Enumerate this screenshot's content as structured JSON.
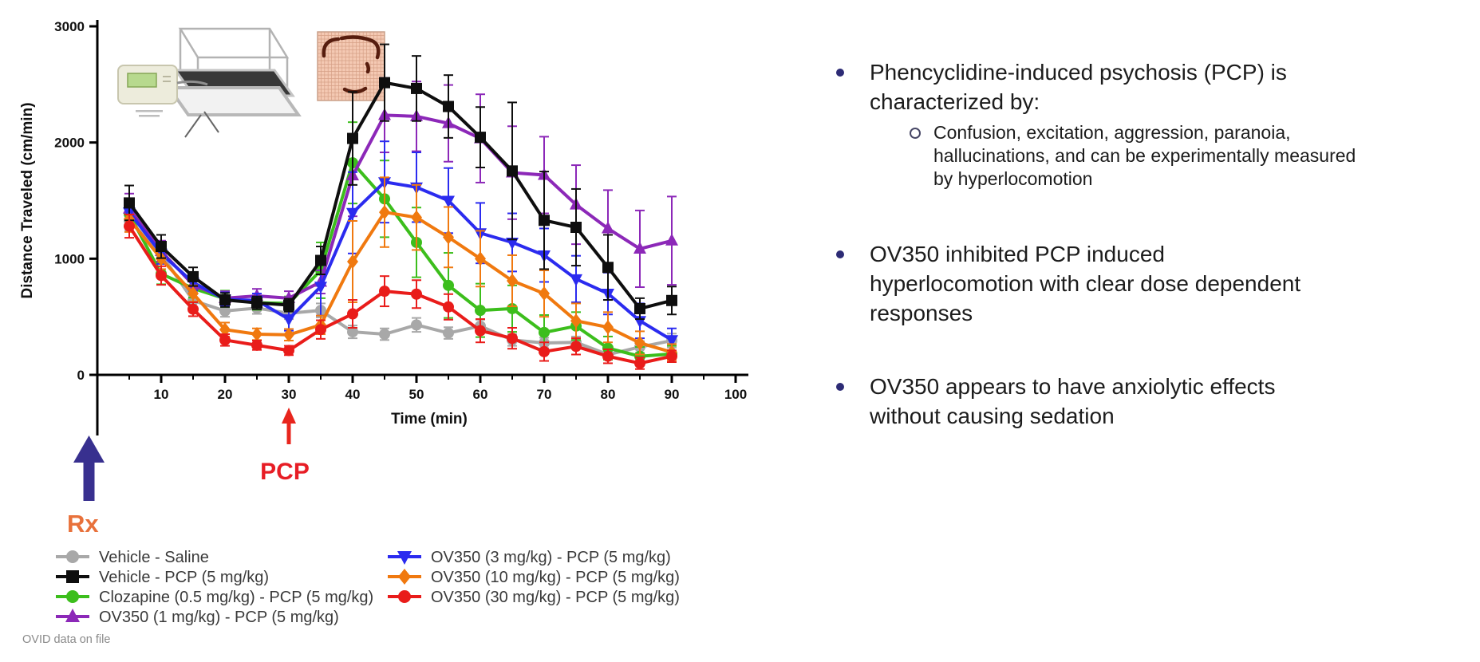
{
  "slide": {
    "background": "#ffffff"
  },
  "footer": {
    "note": "OVID data on file"
  },
  "figures": {
    "apparatus_icon": "activity-chamber-photo",
    "trackplot_icon": "movement-trace-plot"
  },
  "text_panel": {
    "bullet_color": "#2d2b75",
    "text_color": "#1c1c1c",
    "bullets": [
      {
        "lines": [
          "Phencyclidine-induced psychosis (PCP) is",
          "characterized by:"
        ],
        "sub": {
          "lines": [
            "Confusion, excitation, aggression, paranoia,",
            "hallucinations, and can be experimentally measured",
            "by hyperlocomotion"
          ]
        }
      },
      {
        "lines": [
          "OV350 inhibited PCP induced",
          "hyperlocomotion with clear dose dependent",
          "responses"
        ]
      },
      {
        "lines": [
          "OV350 appears to have anxiolytic effects",
          "without causing sedation"
        ]
      }
    ]
  },
  "chart_data": {
    "type": "line",
    "title": "",
    "xlabel": "Time (min)",
    "ylabel": "Distance Traveled (cm/min)",
    "xlim": [
      0,
      102
    ],
    "ylim": [
      0,
      3000
    ],
    "yticks": [
      0,
      1000,
      2000,
      3000
    ],
    "xticks_major": [
      10,
      20,
      30,
      40,
      50,
      60,
      70,
      80,
      90,
      100
    ],
    "xticks_minor": [
      5,
      15,
      25,
      35,
      45,
      55,
      65,
      75,
      85,
      95
    ],
    "grid": false,
    "legend_position": "bottom",
    "x": [
      5,
      10,
      15,
      20,
      25,
      30,
      35,
      40,
      45,
      50,
      55,
      60,
      65,
      70,
      75,
      80,
      85,
      90
    ],
    "series": [
      {
        "name": "Vehicle - Saline",
        "color": "#a8a8a8",
        "marker": "circle",
        "values": [
          1330,
          1040,
          640,
          550,
          575,
          530,
          555,
          370,
          350,
          430,
          360,
          420,
          300,
          275,
          280,
          175,
          240,
          295
        ],
        "err": [
          90,
          80,
          60,
          50,
          50,
          50,
          60,
          55,
          50,
          60,
          50,
          55,
          50,
          45,
          50,
          40,
          50,
          60
        ]
      },
      {
        "name": "Vehicle - PCP (5 mg/kg)",
        "color": "#0e0e0e",
        "marker": "square",
        "values": [
          1480,
          1105,
          845,
          645,
          620,
          600,
          985,
          2035,
          2515,
          2465,
          2310,
          2045,
          1755,
          1330,
          1270,
          925,
          570,
          640
        ],
        "err": [
          150,
          100,
          80,
          60,
          55,
          55,
          120,
          400,
          330,
          280,
          270,
          260,
          590,
          420,
          330,
          280,
          90,
          120
        ]
      },
      {
        "name": "Clozapine (0.5 mg/kg) - PCP (5 mg/kg)",
        "color": "#3cbe1c",
        "marker": "circle",
        "values": [
          1385,
          870,
          745,
          655,
          620,
          615,
          900,
          1825,
          1515,
          1140,
          770,
          555,
          570,
          365,
          420,
          230,
          160,
          180
        ],
        "err": [
          120,
          90,
          80,
          70,
          60,
          60,
          240,
          350,
          330,
          300,
          280,
          230,
          200,
          150,
          120,
          100,
          80,
          70
        ]
      },
      {
        "name": "OV350 (1 mg/kg) - PCP (5 mg/kg)",
        "color": "#8c28b8",
        "marker": "triangle-up",
        "values": [
          1430,
          1065,
          775,
          660,
          680,
          660,
          800,
          1715,
          2235,
          2225,
          2165,
          2035,
          1740,
          1720,
          1465,
          1260,
          1085,
          1155
        ],
        "err": [
          130,
          90,
          70,
          60,
          60,
          60,
          100,
          350,
          320,
          300,
          330,
          380,
          400,
          330,
          340,
          330,
          330,
          380
        ]
      },
      {
        "name": "OV350 (3 mg/kg) - PCP (5 mg/kg)",
        "color": "#2b2bef",
        "marker": "triangle-down",
        "values": [
          1400,
          1045,
          795,
          650,
          640,
          480,
          760,
          1395,
          1660,
          1615,
          1500,
          1220,
          1140,
          1030,
          825,
          700,
          465,
          300
        ],
        "err": [
          120,
          90,
          70,
          60,
          60,
          100,
          250,
          350,
          350,
          300,
          280,
          260,
          250,
          230,
          200,
          180,
          150,
          100
        ]
      },
      {
        "name": "OV350 (10 mg/kg) - PCP (5 mg/kg)",
        "color": "#f0790f",
        "marker": "diamond",
        "values": [
          1340,
          1000,
          700,
          390,
          350,
          345,
          430,
          975,
          1400,
          1355,
          1185,
          1000,
          810,
          700,
          465,
          410,
          275,
          195
        ],
        "err": [
          110,
          90,
          70,
          60,
          50,
          50,
          80,
          350,
          300,
          280,
          260,
          240,
          220,
          200,
          150,
          130,
          100,
          70
        ]
      },
      {
        "name": "OV350 (30 mg/kg) - PCP (5 mg/kg)",
        "color": "#e91c1a",
        "marker": "circle",
        "values": [
          1280,
          855,
          565,
          300,
          255,
          210,
          390,
          525,
          720,
          695,
          585,
          380,
          315,
          200,
          245,
          160,
          100,
          160
        ],
        "err": [
          100,
          80,
          60,
          50,
          40,
          40,
          80,
          120,
          130,
          120,
          110,
          100,
          90,
          80,
          70,
          60,
          50,
          50
        ]
      }
    ],
    "legend_columns": [
      [
        0,
        1,
        2,
        3
      ],
      [
        4,
        5,
        6
      ]
    ],
    "annotations": [
      {
        "type": "arrow-up",
        "x": 0,
        "label": "Rx",
        "arrow_color": "#38308f",
        "label_color": "#e8713b"
      },
      {
        "type": "arrow-up",
        "x": 30,
        "label": "PCP",
        "arrow_color": "#e8251d",
        "label_color": "#e71d25"
      }
    ]
  }
}
